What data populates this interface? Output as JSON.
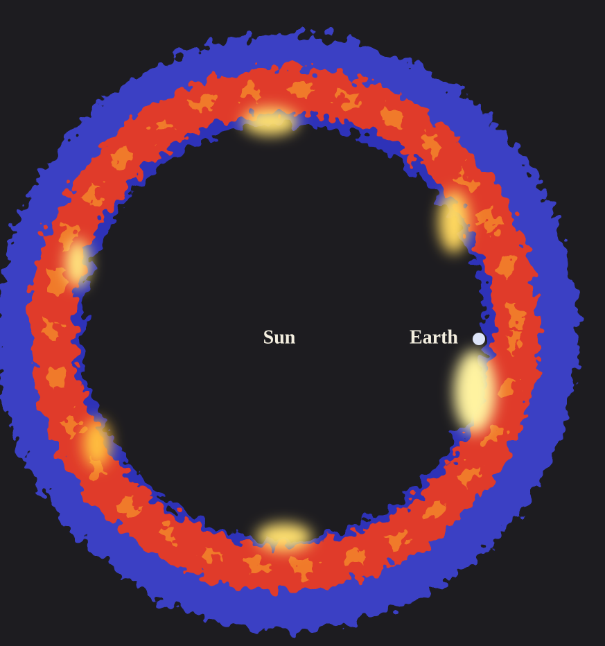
{
  "labels": {
    "sun": "Sun",
    "earth": "Earth"
  }
}
